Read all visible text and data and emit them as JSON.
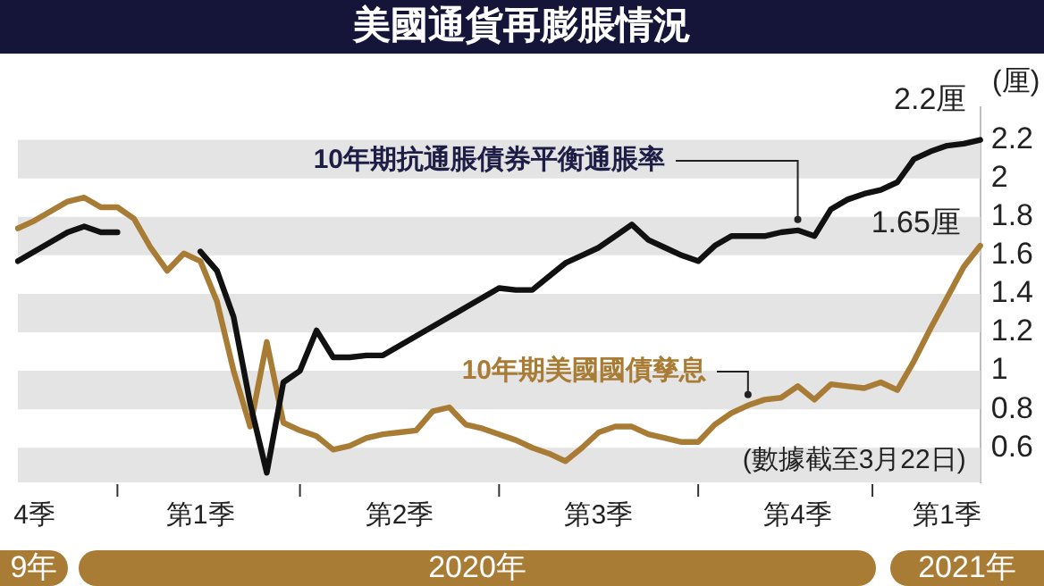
{
  "chart_data": {
    "type": "line",
    "title": "美國通貨再膨脹情況",
    "ylabel": "(厘)",
    "categories": [
      null,
      "4季",
      null,
      null,
      null,
      null,
      null,
      null,
      null,
      null,
      null,
      "第1季",
      null,
      null,
      null,
      null,
      null,
      null,
      null,
      null,
      null,
      null,
      null,
      "第2季",
      null,
      null,
      null,
      null,
      null,
      null,
      null,
      null,
      null,
      null,
      null,
      "第3季",
      null,
      null,
      null,
      null,
      null,
      null,
      null,
      null,
      null,
      null,
      null,
      "第4季",
      null,
      null,
      null,
      null,
      null,
      null,
      null,
      null,
      "第1季",
      null,
      null
    ],
    "ylim": [
      0.42,
      2.37
    ],
    "yticks": [
      0.6,
      0.8,
      1.0,
      1.2,
      1.4,
      1.6,
      1.8,
      2.0,
      2.2
    ],
    "bands": [
      {
        "axis": "y",
        "from": 2.0,
        "to": 2.2,
        "color": "#e4e4e4"
      },
      {
        "axis": "y",
        "from": 1.6,
        "to": 1.8,
        "color": "#e4e4e4"
      },
      {
        "axis": "y",
        "from": 1.2,
        "to": 1.4,
        "color": "#e4e4e4"
      },
      {
        "axis": "y",
        "from": 0.8,
        "to": 1.0,
        "color": "#e4e4e4"
      },
      {
        "axis": "y",
        "from": 0.42,
        "to": 0.6,
        "color": "#e4e4e4"
      }
    ],
    "legend": false,
    "grid": false,
    "marker": "none",
    "line_style": "solid",
    "series": [
      {
        "name": "10年期抗通脹債券平衡通脹率",
        "color": "#111111",
        "values": [
          1.57,
          1.62,
          1.67,
          1.72,
          1.75,
          1.72,
          1.72,
          null,
          null,
          null,
          null,
          1.62,
          1.52,
          1.28,
          0.83,
          0.47,
          0.94,
          1.0,
          1.21,
          1.07,
          1.07,
          1.08,
          1.08,
          1.13,
          1.18,
          1.23,
          1.28,
          1.33,
          1.38,
          1.43,
          1.42,
          1.42,
          1.49,
          1.56,
          1.6,
          1.64,
          1.7,
          1.76,
          1.68,
          1.64,
          1.6,
          1.57,
          1.65,
          1.7,
          1.7,
          1.7,
          1.72,
          1.73,
          1.7,
          1.84,
          1.89,
          1.92,
          1.94,
          1.98,
          2.1,
          2.14,
          2.17,
          2.18,
          2.2
        ],
        "value_labels": [
          null,
          null,
          null,
          null,
          null,
          null,
          null,
          null,
          null,
          null,
          null,
          null,
          null,
          null,
          null,
          null,
          null,
          null,
          null,
          null,
          null,
          null,
          null,
          null,
          null,
          null,
          null,
          null,
          null,
          null,
          null,
          null,
          null,
          null,
          null,
          null,
          null,
          null,
          null,
          null,
          null,
          null,
          null,
          null,
          null,
          null,
          null,
          null,
          null,
          null,
          null,
          null,
          null,
          null,
          null,
          null,
          null,
          null,
          "2.2厘"
        ]
      },
      {
        "name": "10年期美國國債孳息",
        "color": "#a97c36",
        "values": [
          1.74,
          1.78,
          1.83,
          1.88,
          1.9,
          1.85,
          1.85,
          1.79,
          1.64,
          1.52,
          1.61,
          1.57,
          1.36,
          1.0,
          0.71,
          1.15,
          0.73,
          0.69,
          0.66,
          0.59,
          0.61,
          0.65,
          0.67,
          0.68,
          0.69,
          0.79,
          0.81,
          0.72,
          0.7,
          0.67,
          0.64,
          0.6,
          0.57,
          0.53,
          0.6,
          0.68,
          0.71,
          0.71,
          0.67,
          0.65,
          0.63,
          0.63,
          0.72,
          0.78,
          0.82,
          0.85,
          0.86,
          0.92,
          0.85,
          0.93,
          0.92,
          0.91,
          0.94,
          0.9,
          1.05,
          1.22,
          1.38,
          1.54,
          1.65
        ],
        "value_labels": [
          null,
          null,
          null,
          null,
          null,
          null,
          null,
          null,
          null,
          null,
          null,
          null,
          null,
          null,
          null,
          null,
          null,
          null,
          null,
          null,
          null,
          null,
          null,
          null,
          null,
          null,
          null,
          null,
          null,
          null,
          null,
          null,
          null,
          null,
          null,
          null,
          null,
          null,
          null,
          null,
          null,
          null,
          null,
          null,
          null,
          null,
          null,
          null,
          null,
          null,
          null,
          null,
          null,
          null,
          null,
          null,
          null,
          null,
          "1.65厘"
        ]
      }
    ],
    "annotations": [
      "(數據截至3月22日)",
      "9年",
      "2020年",
      "2021年"
    ]
  }
}
